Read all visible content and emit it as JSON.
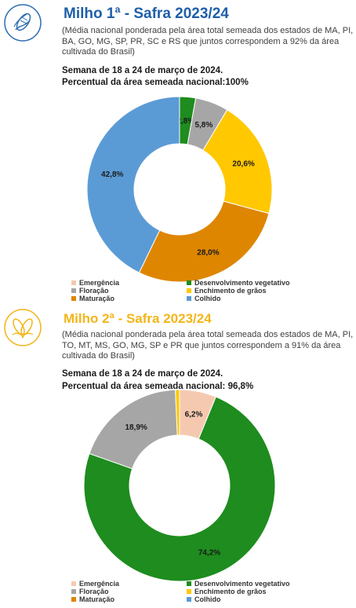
{
  "sections": [
    {
      "title": "Milho 1ª - Safra 2023/24",
      "description": "(Média nacional ponderada pela área total semeada dos estados de MA, PI, BA, GO, MG, SP, PR, SC e RS que juntos correspondem a 92% da área cultivada do Brasil)",
      "week": "Semana de 18 a 24 de março de 2024.",
      "percent_sown": "Percentual da área semeada nacional:100%",
      "logo_icon": "corn-cob-icon",
      "title_color": "#1f5fa8"
    },
    {
      "title": "Milho 2ª - Safra 2023/24",
      "description": "(Média nacional ponderada pela área total semeada dos estados de MA, PI, TO, MT, MS, GO, MG, SP e PR que juntos correspondem a 91% da área cultivada do Brasil)",
      "week": "Semana de 18 a 24 de março de 2024.",
      "percent_sown": "Percentual da área semeada nacional: 96,8%",
      "logo_icon": "corn-cobs-icon",
      "title_color": "#f2b619"
    }
  ],
  "chart_data": [
    {
      "type": "pie",
      "donut": true,
      "categories": [
        "Emergência",
        "Desenvolvimento vegetativo",
        "Floração",
        "Enchimento de grãos",
        "Maturação",
        "Colhido"
      ],
      "values": [
        0.0,
        2.8,
        5.8,
        20.6,
        28.0,
        42.8
      ],
      "labels": [
        "",
        "2,8%",
        "5,8%",
        "20,6%",
        "28,0%",
        "42,8%"
      ],
      "colors": [
        "#f5c9b0",
        "#1e8c1e",
        "#a6a6a6",
        "#ffc800",
        "#de8600",
        "#5b9bd5"
      ],
      "legend_placement": "bottom"
    },
    {
      "type": "pie",
      "donut": true,
      "categories": [
        "Emergência",
        "Desenvolvimento vegetativo",
        "Floração",
        "Enchimento de grãos",
        "Maturação",
        "Colhido"
      ],
      "values": [
        6.2,
        74.2,
        18.9,
        0.7,
        0.0,
        0.0
      ],
      "labels": [
        "6,2%",
        "74,2%",
        "18,9%",
        "",
        "",
        ""
      ],
      "colors": [
        "#f5c9b0",
        "#1e8c1e",
        "#a6a6a6",
        "#ffc800",
        "#de8600",
        "#5b9bd5"
      ],
      "legend_placement": "bottom"
    }
  ]
}
